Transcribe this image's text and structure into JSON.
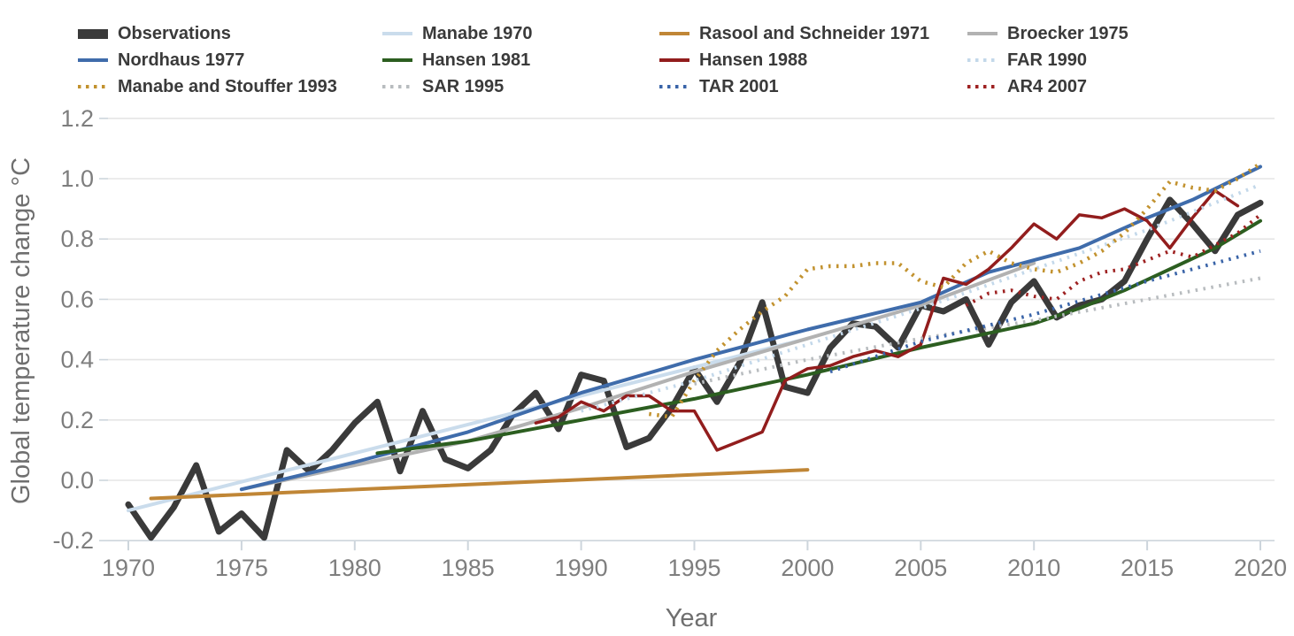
{
  "chart_data": {
    "type": "line",
    "title": "",
    "xlabel": "Year",
    "ylabel": "Global temperature change °C",
    "xlim": [
      1969.1,
      2020.6
    ],
    "ylim": [
      -0.2,
      1.2
    ],
    "x_ticks": [
      1970,
      1975,
      1980,
      1985,
      1990,
      1995,
      2000,
      2005,
      2010,
      2015,
      2020
    ],
    "y_ticks": [
      -0.2,
      0.0,
      0.2,
      0.4,
      0.6,
      0.8,
      1.0,
      1.2
    ],
    "grid": "horizontal",
    "legend_position": "top",
    "series": [
      {
        "name": "Observations",
        "color": "#3a3a3a",
        "style": "solid",
        "width": 7,
        "legend_swatch": "thick",
        "points": [
          [
            1970,
            -0.08
          ],
          [
            1971,
            -0.19
          ],
          [
            1972,
            -0.09
          ],
          [
            1973,
            0.05
          ],
          [
            1974,
            -0.17
          ],
          [
            1975,
            -0.11
          ],
          [
            1976,
            -0.19
          ],
          [
            1977,
            0.1
          ],
          [
            1978,
            0.03
          ],
          [
            1979,
            0.1
          ],
          [
            1980,
            0.19
          ],
          [
            1981,
            0.26
          ],
          [
            1982,
            0.03
          ],
          [
            1983,
            0.23
          ],
          [
            1984,
            0.07
          ],
          [
            1985,
            0.04
          ],
          [
            1986,
            0.1
          ],
          [
            1987,
            0.22
          ],
          [
            1988,
            0.29
          ],
          [
            1989,
            0.17
          ],
          [
            1990,
            0.35
          ],
          [
            1991,
            0.33
          ],
          [
            1992,
            0.11
          ],
          [
            1993,
            0.14
          ],
          [
            1994,
            0.24
          ],
          [
            1995,
            0.37
          ],
          [
            1996,
            0.26
          ],
          [
            1997,
            0.39
          ],
          [
            1998,
            0.59
          ],
          [
            1999,
            0.31
          ],
          [
            2000,
            0.29
          ],
          [
            2001,
            0.44
          ],
          [
            2002,
            0.52
          ],
          [
            2003,
            0.51
          ],
          [
            2004,
            0.44
          ],
          [
            2005,
            0.58
          ],
          [
            2006,
            0.56
          ],
          [
            2007,
            0.6
          ],
          [
            2008,
            0.45
          ],
          [
            2009,
            0.59
          ],
          [
            2010,
            0.66
          ],
          [
            2011,
            0.54
          ],
          [
            2012,
            0.58
          ],
          [
            2013,
            0.6
          ],
          [
            2014,
            0.66
          ],
          [
            2015,
            0.8
          ],
          [
            2016,
            0.93
          ],
          [
            2017,
            0.85
          ],
          [
            2018,
            0.76
          ],
          [
            2019,
            0.88
          ],
          [
            2020,
            0.92
          ]
        ]
      },
      {
        "name": "Manabe 1970",
        "color": "#cadcec",
        "style": "solid",
        "width": 4,
        "legend_swatch": "line",
        "points": [
          [
            1970,
            -0.1
          ],
          [
            2000,
            0.47
          ]
        ]
      },
      {
        "name": "Rasool and Schneider 1971",
        "color": "#c08636",
        "style": "solid",
        "width": 4,
        "legend_swatch": "line",
        "points": [
          [
            1971,
            -0.06
          ],
          [
            2000,
            0.035
          ]
        ]
      },
      {
        "name": "Broecker 1975",
        "color": "#b2b2b2",
        "style": "solid",
        "width": 4,
        "legend_swatch": "line",
        "points": [
          [
            1975,
            -0.03
          ],
          [
            1980,
            0.05
          ],
          [
            1985,
            0.13
          ],
          [
            1990,
            0.24
          ],
          [
            1995,
            0.36
          ],
          [
            2000,
            0.47
          ],
          [
            2005,
            0.58
          ],
          [
            2010,
            0.72
          ]
        ]
      },
      {
        "name": "Nordhaus 1977",
        "color": "#3f6cab",
        "style": "solid",
        "width": 4,
        "legend_swatch": "line",
        "points": [
          [
            1975,
            -0.03
          ],
          [
            1980,
            0.06
          ],
          [
            1985,
            0.16
          ],
          [
            1990,
            0.29
          ],
          [
            1995,
            0.4
          ],
          [
            2000,
            0.5
          ],
          [
            2005,
            0.59
          ],
          [
            2008,
            0.69
          ],
          [
            2010,
            0.73
          ],
          [
            2012,
            0.77
          ],
          [
            2015,
            0.87
          ],
          [
            2017,
            0.93
          ],
          [
            2020,
            1.04
          ]
        ]
      },
      {
        "name": "Hansen 1981",
        "color": "#2c5e20",
        "style": "solid",
        "width": 4,
        "legend_swatch": "line",
        "points": [
          [
            1981,
            0.09
          ],
          [
            1985,
            0.13
          ],
          [
            1990,
            0.2
          ],
          [
            1995,
            0.27
          ],
          [
            2000,
            0.35
          ],
          [
            2005,
            0.44
          ],
          [
            2010,
            0.52
          ],
          [
            2012,
            0.57
          ],
          [
            2014,
            0.63
          ],
          [
            2016,
            0.7
          ],
          [
            2018,
            0.77
          ],
          [
            2020,
            0.86
          ]
        ]
      },
      {
        "name": "Hansen 1988",
        "color": "#921d1d",
        "style": "solid",
        "width": 3.5,
        "legend_swatch": "line",
        "points": [
          [
            1988,
            0.19
          ],
          [
            1989,
            0.21
          ],
          [
            1990,
            0.26
          ],
          [
            1991,
            0.23
          ],
          [
            1992,
            0.28
          ],
          [
            1993,
            0.28
          ],
          [
            1994,
            0.23
          ],
          [
            1995,
            0.23
          ],
          [
            1996,
            0.1
          ],
          [
            1997,
            0.13
          ],
          [
            1998,
            0.16
          ],
          [
            1999,
            0.33
          ],
          [
            2000,
            0.37
          ],
          [
            2001,
            0.38
          ],
          [
            2002,
            0.41
          ],
          [
            2003,
            0.43
          ],
          [
            2004,
            0.41
          ],
          [
            2005,
            0.45
          ],
          [
            2006,
            0.67
          ],
          [
            2007,
            0.65
          ],
          [
            2008,
            0.7
          ],
          [
            2009,
            0.77
          ],
          [
            2010,
            0.85
          ],
          [
            2011,
            0.8
          ],
          [
            2012,
            0.88
          ],
          [
            2013,
            0.87
          ],
          [
            2014,
            0.9
          ],
          [
            2015,
            0.86
          ],
          [
            2016,
            0.77
          ],
          [
            2017,
            0.87
          ],
          [
            2018,
            0.96
          ],
          [
            2019,
            0.91
          ]
        ]
      },
      {
        "name": "FAR 1990",
        "color": "#c3d8ea",
        "style": "dotted",
        "width": 4,
        "legend_swatch": "dotted",
        "points": [
          [
            1990,
            0.23
          ],
          [
            1995,
            0.33
          ],
          [
            2000,
            0.45
          ],
          [
            2005,
            0.57
          ],
          [
            2010,
            0.7
          ],
          [
            2015,
            0.83
          ],
          [
            2020,
            0.98
          ]
        ]
      },
      {
        "name": "Manabe and Stouffer 1993",
        "color": "#c2922f",
        "style": "dotted",
        "width": 4.5,
        "legend_swatch": "dotted",
        "points": [
          [
            1993,
            0.22
          ],
          [
            1994,
            0.21
          ],
          [
            1995,
            0.33
          ],
          [
            1996,
            0.43
          ],
          [
            1997,
            0.5
          ],
          [
            1998,
            0.56
          ],
          [
            1999,
            0.61
          ],
          [
            2000,
            0.7
          ],
          [
            2001,
            0.71
          ],
          [
            2002,
            0.71
          ],
          [
            2003,
            0.72
          ],
          [
            2004,
            0.72
          ],
          [
            2005,
            0.66
          ],
          [
            2006,
            0.64
          ],
          [
            2007,
            0.72
          ],
          [
            2008,
            0.76
          ],
          [
            2009,
            0.72
          ],
          [
            2010,
            0.7
          ],
          [
            2011,
            0.69
          ],
          [
            2012,
            0.72
          ],
          [
            2013,
            0.76
          ],
          [
            2014,
            0.82
          ],
          [
            2015,
            0.9
          ],
          [
            2016,
            0.99
          ],
          [
            2017,
            0.97
          ],
          [
            2018,
            0.96
          ],
          [
            2019,
            1.0
          ],
          [
            2020,
            1.05
          ]
        ]
      },
      {
        "name": "SAR 1995",
        "color": "#b8bcbf",
        "style": "dotted",
        "width": 4,
        "legend_swatch": "dotted",
        "points": [
          [
            1995,
            0.32
          ],
          [
            2000,
            0.4
          ],
          [
            2005,
            0.47
          ],
          [
            2010,
            0.53
          ],
          [
            2015,
            0.6
          ],
          [
            2020,
            0.67
          ]
        ]
      },
      {
        "name": "TAR 2001",
        "color": "#3a64a8",
        "style": "dotted",
        "width": 4,
        "legend_swatch": "dotted",
        "points": [
          [
            2001,
            0.36
          ],
          [
            2005,
            0.46
          ],
          [
            2010,
            0.55
          ],
          [
            2015,
            0.66
          ],
          [
            2020,
            0.76
          ]
        ]
      },
      {
        "name": "AR4 2007",
        "color": "#9e2222",
        "style": "dotted",
        "width": 4,
        "legend_swatch": "dotted",
        "points": [
          [
            2007,
            0.58
          ],
          [
            2008,
            0.62
          ],
          [
            2009,
            0.63
          ],
          [
            2010,
            0.61
          ],
          [
            2011,
            0.6
          ],
          [
            2012,
            0.66
          ],
          [
            2013,
            0.69
          ],
          [
            2014,
            0.7
          ],
          [
            2015,
            0.73
          ],
          [
            2016,
            0.76
          ],
          [
            2017,
            0.74
          ],
          [
            2018,
            0.78
          ],
          [
            2019,
            0.82
          ],
          [
            2020,
            0.88
          ]
        ]
      }
    ],
    "legend": [
      "Observations",
      "Manabe 1970",
      "Rasool and Schneider 1971",
      "Broecker 1975",
      "Nordhaus 1977",
      "Hansen 1981",
      "Hansen 1988",
      "FAR 1990",
      "Manabe and Stouffer 1993",
      "SAR 1995",
      "TAR 2001",
      "AR4 2007"
    ]
  },
  "style_colors": {
    "gridline": "#e5e5e5",
    "axis_line": "#cdd5dc",
    "tick_mark": "#cdd5dc",
    "tick_label": "#7e7e7e",
    "axis_title": "#6f6f6f",
    "legend_text": "#3a3a3a",
    "background": "#ffffff"
  }
}
